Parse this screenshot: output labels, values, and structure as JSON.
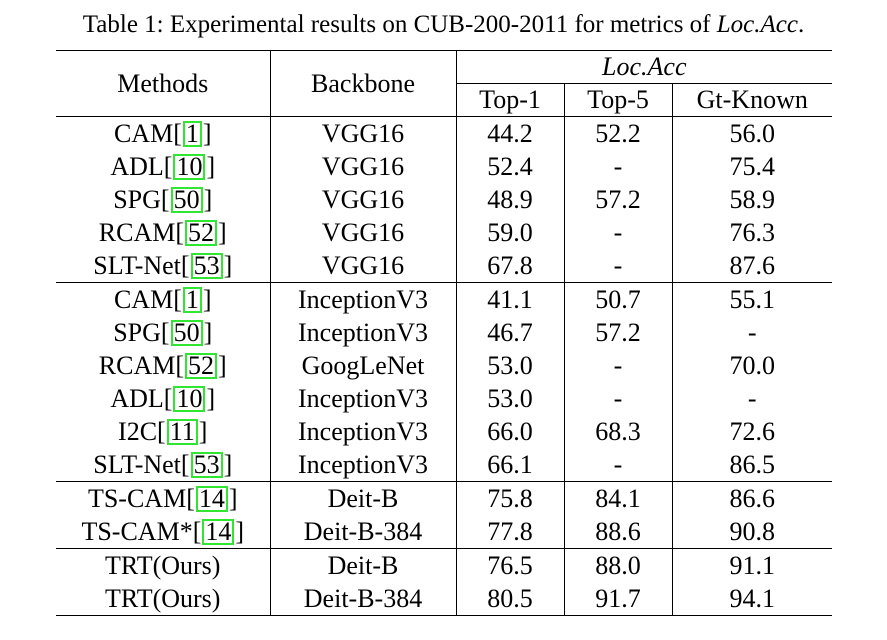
{
  "caption": {
    "prefix": "Table 1: Experimental results on CUB-200-2011 for metrics of ",
    "metric": "Loc.Acc",
    "suffix": "."
  },
  "headers": {
    "methods": "Methods",
    "backbone": "Backbone",
    "group": "Loc.Acc",
    "top1": "Top-1",
    "top5": "Top-5",
    "gt_known": "Gt-Known"
  },
  "groups": [
    {
      "rows": [
        {
          "method": "CAM",
          "ref": "1",
          "backbone": "VGG16",
          "top1": "44.2",
          "top5": "52.2",
          "gt": "56.0"
        },
        {
          "method": "ADL",
          "ref": "10",
          "backbone": "VGG16",
          "top1": "52.4",
          "top5": "-",
          "gt": "75.4"
        },
        {
          "method": "SPG",
          "ref": "50",
          "backbone": "VGG16",
          "top1": "48.9",
          "top5": "57.2",
          "gt": "58.9"
        },
        {
          "method": "RCAM",
          "ref": "52",
          "backbone": "VGG16",
          "top1": "59.0",
          "top5": "-",
          "gt": "76.3"
        },
        {
          "method": "SLT-Net",
          "ref": "53",
          "backbone": "VGG16",
          "top1": "67.8",
          "top5": "-",
          "gt": "87.6"
        }
      ]
    },
    {
      "rows": [
        {
          "method": "CAM",
          "ref": "1",
          "backbone": "InceptionV3",
          "top1": "41.1",
          "top5": "50.7",
          "gt": "55.1"
        },
        {
          "method": "SPG",
          "ref": "50",
          "backbone": "InceptionV3",
          "top1": "46.7",
          "top5": "57.2",
          "gt": "-"
        },
        {
          "method": "RCAM",
          "ref": "52",
          "backbone": "GoogLeNet",
          "top1": "53.0",
          "top5": "-",
          "gt": "70.0"
        },
        {
          "method": "ADL",
          "ref": "10",
          "backbone": "InceptionV3",
          "top1": "53.0",
          "top5": "-",
          "gt": "-"
        },
        {
          "method": "I2C",
          "ref": "11",
          "backbone": "InceptionV3",
          "top1": "66.0",
          "top5": "68.3",
          "gt": "72.6"
        },
        {
          "method": "SLT-Net",
          "ref": "53",
          "backbone": "InceptionV3",
          "top1": "66.1",
          "top5": "-",
          "gt": "86.5"
        }
      ]
    },
    {
      "rows": [
        {
          "method": "TS-CAM",
          "ref": "14",
          "backbone": "Deit-B",
          "top1": "75.8",
          "top5": "84.1",
          "gt": "86.6"
        },
        {
          "method": "TS-CAM*",
          "ref": "14",
          "backbone": "Deit-B-384",
          "top1": "77.8",
          "top5": "88.6",
          "gt": "90.8"
        }
      ]
    },
    {
      "rows": [
        {
          "method": "TRT(Ours)",
          "ref": null,
          "backbone": "Deit-B",
          "top1": "76.5",
          "top5": "88.0",
          "gt": "91.1"
        },
        {
          "method": "TRT(Ours)",
          "ref": null,
          "backbone": "Deit-B-384",
          "top1": "80.5",
          "top5": "91.7",
          "gt": "94.1"
        }
      ]
    }
  ]
}
